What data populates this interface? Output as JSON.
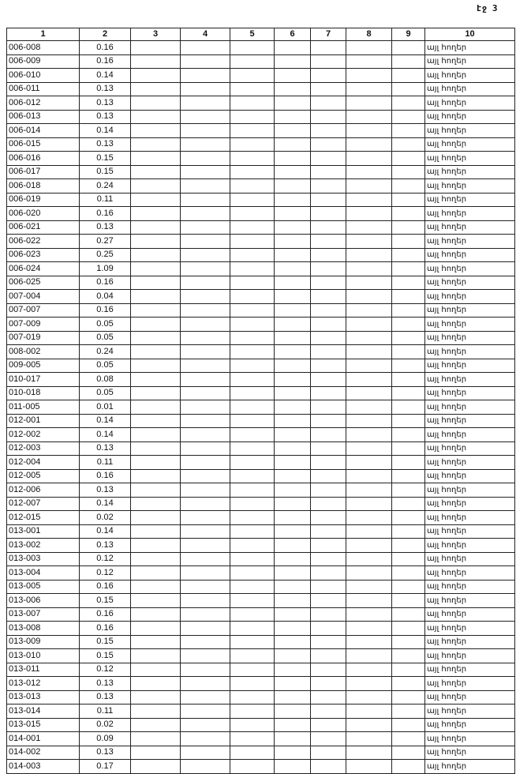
{
  "page_label": "էջ 3",
  "table": {
    "headers": [
      "1",
      "2",
      "3",
      "4",
      "5",
      "6",
      "7",
      "8",
      "9",
      "10"
    ],
    "col10_text": "այլ հողեր",
    "rows": [
      [
        "006-008",
        "0.16"
      ],
      [
        "006-009",
        "0.16"
      ],
      [
        "006-010",
        "0.14"
      ],
      [
        "006-011",
        "0.13"
      ],
      [
        "006-012",
        "0.13"
      ],
      [
        "006-013",
        "0.13"
      ],
      [
        "006-014",
        "0.14"
      ],
      [
        "006-015",
        "0.13"
      ],
      [
        "006-016",
        "0.15"
      ],
      [
        "006-017",
        "0.15"
      ],
      [
        "006-018",
        "0.24"
      ],
      [
        "006-019",
        "0.11"
      ],
      [
        "006-020",
        "0.16"
      ],
      [
        "006-021",
        "0.13"
      ],
      [
        "006-022",
        "0.27"
      ],
      [
        "006-023",
        "0.25"
      ],
      [
        "006-024",
        "1.09"
      ],
      [
        "006-025",
        "0.16"
      ],
      [
        "007-004",
        "0.04"
      ],
      [
        "007-007",
        "0.16"
      ],
      [
        "007-009",
        "0.05"
      ],
      [
        "007-019",
        "0.05"
      ],
      [
        "008-002",
        "0.24"
      ],
      [
        "009-005",
        "0.05"
      ],
      [
        "010-017",
        "0.08"
      ],
      [
        "010-018",
        "0.05"
      ],
      [
        "011-005",
        "0.01"
      ],
      [
        "012-001",
        "0.14"
      ],
      [
        "012-002",
        "0.14"
      ],
      [
        "012-003",
        "0.13"
      ],
      [
        "012-004",
        "0.11"
      ],
      [
        "012-005",
        "0.16"
      ],
      [
        "012-006",
        "0.13"
      ],
      [
        "012-007",
        "0.14"
      ],
      [
        "012-015",
        "0.02"
      ],
      [
        "013-001",
        "0.14"
      ],
      [
        "013-002",
        "0.13"
      ],
      [
        "013-003",
        "0.12"
      ],
      [
        "013-004",
        "0.12"
      ],
      [
        "013-005",
        "0.16"
      ],
      [
        "013-006",
        "0.15"
      ],
      [
        "013-007",
        "0.16"
      ],
      [
        "013-008",
        "0.16"
      ],
      [
        "013-009",
        "0.15"
      ],
      [
        "013-010",
        "0.15"
      ],
      [
        "013-011",
        "0.12"
      ],
      [
        "013-012",
        "0.13"
      ],
      [
        "013-013",
        "0.13"
      ],
      [
        "013-014",
        "0.11"
      ],
      [
        "013-015",
        "0.02"
      ],
      [
        "014-001",
        "0.09"
      ],
      [
        "014-002",
        "0.13"
      ],
      [
        "014-003",
        "0.17"
      ]
    ]
  }
}
